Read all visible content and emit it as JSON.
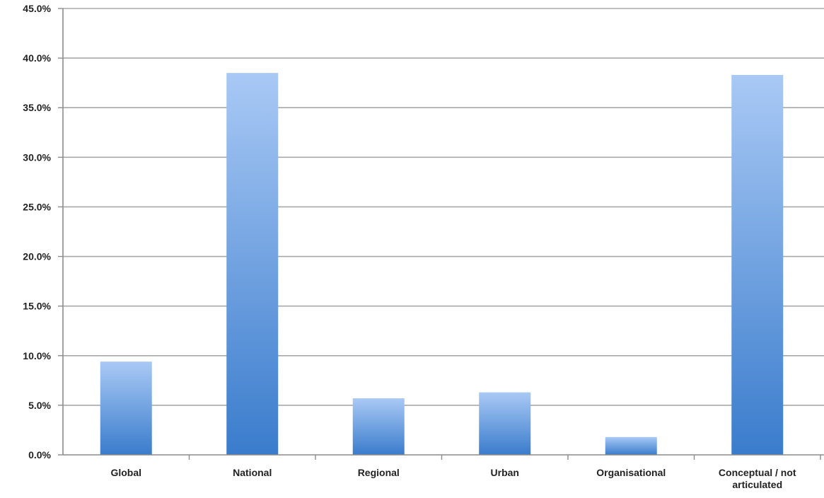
{
  "chart_data": {
    "type": "bar",
    "categories": [
      "Global",
      "National",
      "Regional",
      "Urban",
      "Organisational",
      "Conceptual / not articulated"
    ],
    "category_lines": [
      [
        "Global"
      ],
      [
        "National"
      ],
      [
        "Regional"
      ],
      [
        "Urban"
      ],
      [
        "Organisational"
      ],
      [
        "Conceptual / not",
        "articulated"
      ]
    ],
    "values": [
      9.4,
      38.5,
      5.7,
      6.3,
      1.8,
      38.3
    ],
    "ylim": [
      0,
      45
    ],
    "yticks": [
      0,
      5,
      10,
      15,
      20,
      25,
      30,
      35,
      40,
      45
    ],
    "ytick_labels": [
      "0.0%",
      "5.0%",
      "10.0%",
      "15.0%",
      "20.0%",
      "25.0%",
      "30.0%",
      "35.0%",
      "40.0%",
      "45.0%"
    ],
    "title": "",
    "xlabel": "",
    "ylabel": "",
    "grid": true,
    "legend": "none",
    "colors": {
      "bar_top": "#a9c9f5",
      "bar_bottom": "#3a7ccc",
      "grid": "#a8a8a8",
      "axis": "#8c8c8c",
      "text": "#222222"
    }
  }
}
